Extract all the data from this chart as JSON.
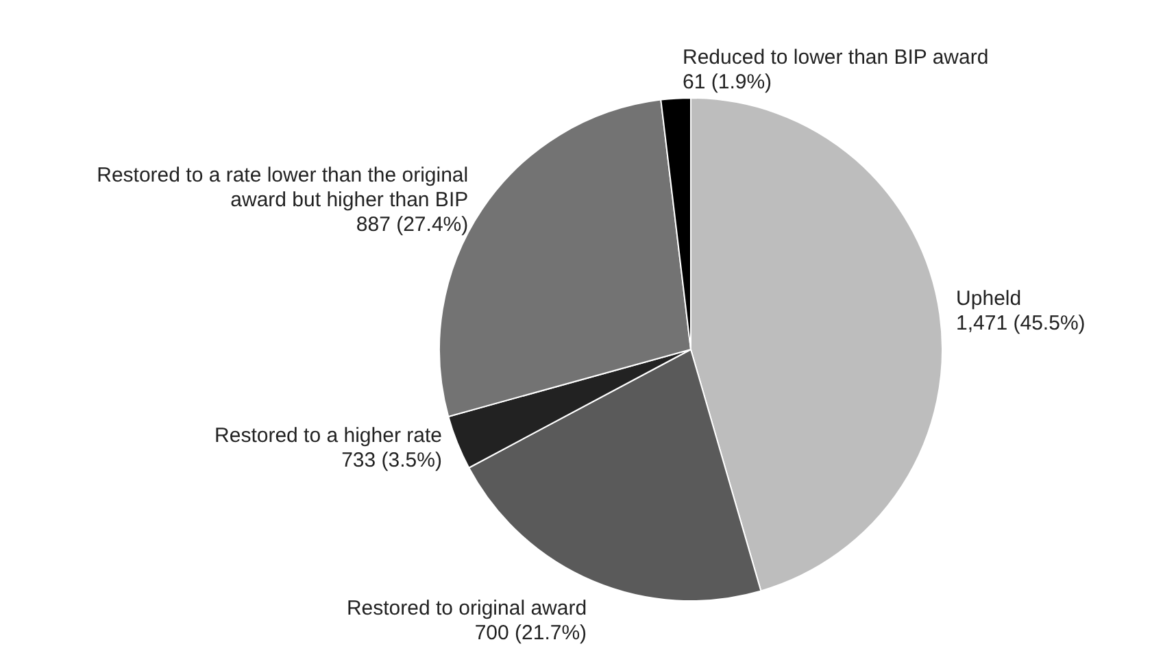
{
  "chart_data": {
    "type": "pie",
    "categories": [
      "Upheld",
      "Restored to original award",
      "Restored to a higher rate",
      "Restored to a rate lower than the original award but higher than BIP",
      "Reduced to lower than BIP award"
    ],
    "values": [
      45.5,
      21.7,
      3.5,
      27.4,
      1.9
    ],
    "value_labels": [
      "1,471 (45.5%)",
      "700 (21.7%)",
      "733 (3.5%)",
      "887 (27.4%)",
      "61 (1.9%)"
    ],
    "colors": [
      "#bdbdbd",
      "#5a5a5a",
      "#222222",
      "#737373",
      "#000000"
    ]
  }
}
